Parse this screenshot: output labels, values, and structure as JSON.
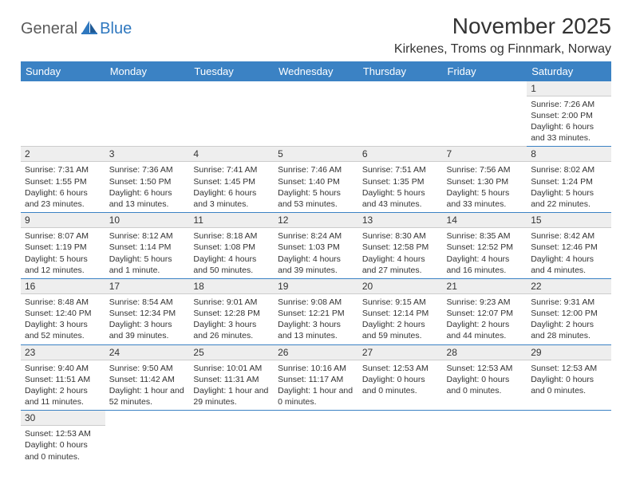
{
  "logo": {
    "text1": "General",
    "text2": "Blue"
  },
  "title": "November 2025",
  "location": "Kirkenes, Troms og Finnmark, Norway",
  "colors": {
    "header_bg": "#3b82c4",
    "header_text": "#ffffff",
    "row_border": "#3b82c4",
    "daynum_bg": "#eeeeee",
    "text": "#333333",
    "logo_gray": "#5b5b5b",
    "logo_blue": "#2f78bf"
  },
  "weekdays": [
    "Sunday",
    "Monday",
    "Tuesday",
    "Wednesday",
    "Thursday",
    "Friday",
    "Saturday"
  ],
  "weeks": [
    [
      null,
      null,
      null,
      null,
      null,
      null,
      {
        "n": "1",
        "sunrise": "Sunrise: 7:26 AM",
        "sunset": "Sunset: 2:00 PM",
        "daylight": "Daylight: 6 hours and 33 minutes."
      }
    ],
    [
      {
        "n": "2",
        "sunrise": "Sunrise: 7:31 AM",
        "sunset": "Sunset: 1:55 PM",
        "daylight": "Daylight: 6 hours and 23 minutes."
      },
      {
        "n": "3",
        "sunrise": "Sunrise: 7:36 AM",
        "sunset": "Sunset: 1:50 PM",
        "daylight": "Daylight: 6 hours and 13 minutes."
      },
      {
        "n": "4",
        "sunrise": "Sunrise: 7:41 AM",
        "sunset": "Sunset: 1:45 PM",
        "daylight": "Daylight: 6 hours and 3 minutes."
      },
      {
        "n": "5",
        "sunrise": "Sunrise: 7:46 AM",
        "sunset": "Sunset: 1:40 PM",
        "daylight": "Daylight: 5 hours and 53 minutes."
      },
      {
        "n": "6",
        "sunrise": "Sunrise: 7:51 AM",
        "sunset": "Sunset: 1:35 PM",
        "daylight": "Daylight: 5 hours and 43 minutes."
      },
      {
        "n": "7",
        "sunrise": "Sunrise: 7:56 AM",
        "sunset": "Sunset: 1:30 PM",
        "daylight": "Daylight: 5 hours and 33 minutes."
      },
      {
        "n": "8",
        "sunrise": "Sunrise: 8:02 AM",
        "sunset": "Sunset: 1:24 PM",
        "daylight": "Daylight: 5 hours and 22 minutes."
      }
    ],
    [
      {
        "n": "9",
        "sunrise": "Sunrise: 8:07 AM",
        "sunset": "Sunset: 1:19 PM",
        "daylight": "Daylight: 5 hours and 12 minutes."
      },
      {
        "n": "10",
        "sunrise": "Sunrise: 8:12 AM",
        "sunset": "Sunset: 1:14 PM",
        "daylight": "Daylight: 5 hours and 1 minute."
      },
      {
        "n": "11",
        "sunrise": "Sunrise: 8:18 AM",
        "sunset": "Sunset: 1:08 PM",
        "daylight": "Daylight: 4 hours and 50 minutes."
      },
      {
        "n": "12",
        "sunrise": "Sunrise: 8:24 AM",
        "sunset": "Sunset: 1:03 PM",
        "daylight": "Daylight: 4 hours and 39 minutes."
      },
      {
        "n": "13",
        "sunrise": "Sunrise: 8:30 AM",
        "sunset": "Sunset: 12:58 PM",
        "daylight": "Daylight: 4 hours and 27 minutes."
      },
      {
        "n": "14",
        "sunrise": "Sunrise: 8:35 AM",
        "sunset": "Sunset: 12:52 PM",
        "daylight": "Daylight: 4 hours and 16 minutes."
      },
      {
        "n": "15",
        "sunrise": "Sunrise: 8:42 AM",
        "sunset": "Sunset: 12:46 PM",
        "daylight": "Daylight: 4 hours and 4 minutes."
      }
    ],
    [
      {
        "n": "16",
        "sunrise": "Sunrise: 8:48 AM",
        "sunset": "Sunset: 12:40 PM",
        "daylight": "Daylight: 3 hours and 52 minutes."
      },
      {
        "n": "17",
        "sunrise": "Sunrise: 8:54 AM",
        "sunset": "Sunset: 12:34 PM",
        "daylight": "Daylight: 3 hours and 39 minutes."
      },
      {
        "n": "18",
        "sunrise": "Sunrise: 9:01 AM",
        "sunset": "Sunset: 12:28 PM",
        "daylight": "Daylight: 3 hours and 26 minutes."
      },
      {
        "n": "19",
        "sunrise": "Sunrise: 9:08 AM",
        "sunset": "Sunset: 12:21 PM",
        "daylight": "Daylight: 3 hours and 13 minutes."
      },
      {
        "n": "20",
        "sunrise": "Sunrise: 9:15 AM",
        "sunset": "Sunset: 12:14 PM",
        "daylight": "Daylight: 2 hours and 59 minutes."
      },
      {
        "n": "21",
        "sunrise": "Sunrise: 9:23 AM",
        "sunset": "Sunset: 12:07 PM",
        "daylight": "Daylight: 2 hours and 44 minutes."
      },
      {
        "n": "22",
        "sunrise": "Sunrise: 9:31 AM",
        "sunset": "Sunset: 12:00 PM",
        "daylight": "Daylight: 2 hours and 28 minutes."
      }
    ],
    [
      {
        "n": "23",
        "sunrise": "Sunrise: 9:40 AM",
        "sunset": "Sunset: 11:51 AM",
        "daylight": "Daylight: 2 hours and 11 minutes."
      },
      {
        "n": "24",
        "sunrise": "Sunrise: 9:50 AM",
        "sunset": "Sunset: 11:42 AM",
        "daylight": "Daylight: 1 hour and 52 minutes."
      },
      {
        "n": "25",
        "sunrise": "Sunrise: 10:01 AM",
        "sunset": "Sunset: 11:31 AM",
        "daylight": "Daylight: 1 hour and 29 minutes."
      },
      {
        "n": "26",
        "sunrise": "Sunrise: 10:16 AM",
        "sunset": "Sunset: 11:17 AM",
        "daylight": "Daylight: 1 hour and 0 minutes."
      },
      {
        "n": "27",
        "sunrise": "",
        "sunset": "Sunset: 12:53 AM",
        "daylight": "Daylight: 0 hours and 0 minutes."
      },
      {
        "n": "28",
        "sunrise": "",
        "sunset": "Sunset: 12:53 AM",
        "daylight": "Daylight: 0 hours and 0 minutes."
      },
      {
        "n": "29",
        "sunrise": "",
        "sunset": "Sunset: 12:53 AM",
        "daylight": "Daylight: 0 hours and 0 minutes."
      }
    ],
    [
      {
        "n": "30",
        "sunrise": "",
        "sunset": "Sunset: 12:53 AM",
        "daylight": "Daylight: 0 hours and 0 minutes."
      },
      null,
      null,
      null,
      null,
      null,
      null
    ]
  ]
}
